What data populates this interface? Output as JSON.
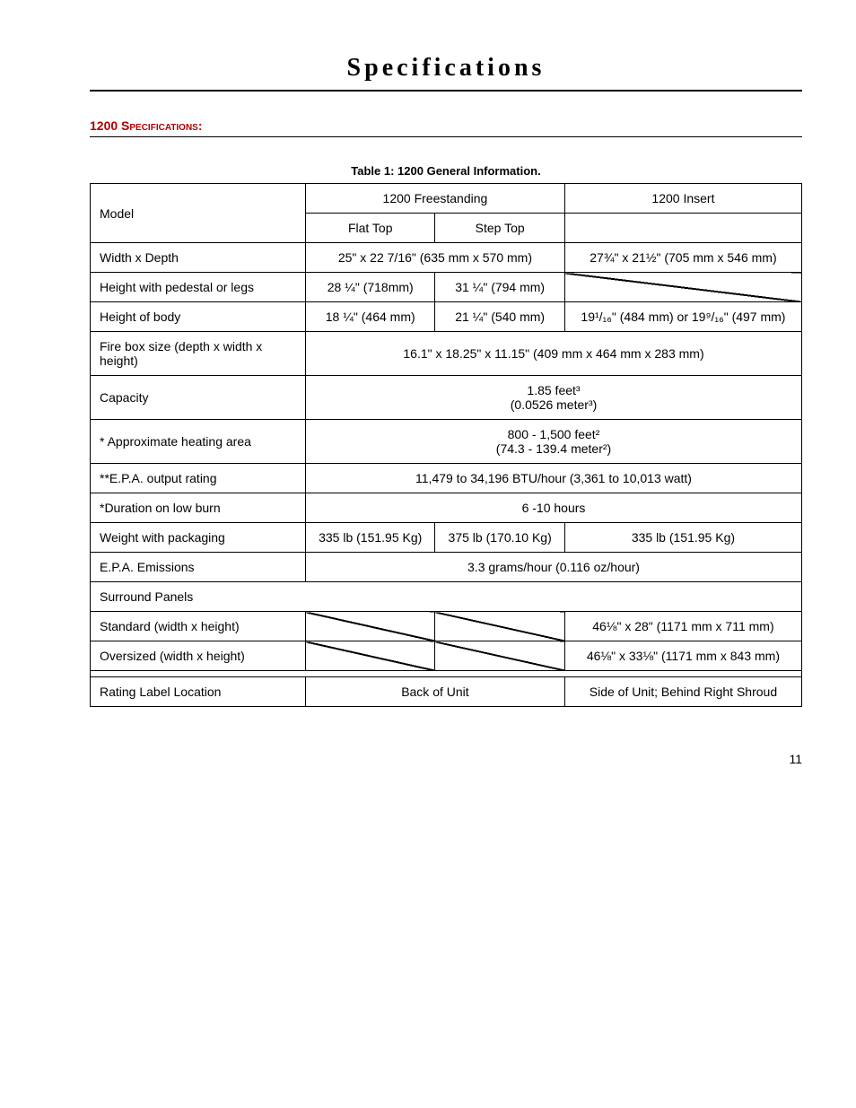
{
  "page_title": "Specifications",
  "section_title": "1200 Specifications:",
  "table_caption": "Table 1: 1200 General Information.",
  "headers": {
    "model": "Model",
    "freestanding": "1200 Freestanding",
    "insert": "1200 Insert",
    "flat_top": "Flat Top",
    "step_top": "Step Top"
  },
  "rows": {
    "width_depth": {
      "label": "Width x Depth",
      "freestanding": "25\" x 22 7/16\" (635 mm x 570 mm)",
      "insert": "27¾\"  x 21½\" (705 mm x 546 mm)"
    },
    "height_pedestal": {
      "label": "Height with pedestal or legs",
      "flat": "28 ¼\" (718mm)",
      "step": "31 ¼\" (794 mm)",
      "insert": ""
    },
    "height_body": {
      "label": "Height of body",
      "flat": "18 ¼\" (464 mm)",
      "step": "21 ¼\" (540 mm)",
      "insert": "19¹/₁₆\" (484 mm) or 19⁹/₁₆\" (497 mm)"
    },
    "firebox": {
      "label": "Fire box size (depth x width x height)",
      "value": "16.1\" x 18.25\" x 11.15\" (409 mm x 464 mm x 283 mm)"
    },
    "capacity": {
      "label": "Capacity",
      "line1": "1.85 feet³",
      "line2": "(0.0526 meter³)"
    },
    "heating_area": {
      "label": "* Approximate heating area",
      "line1": "800 - 1,500 feet²",
      "line2": "(74.3 - 139.4 meter²)"
    },
    "epa_output": {
      "label": "**E.P.A. output rating",
      "value": "11,479 to 34,196 BTU/hour (3,361 to 10,013 watt)"
    },
    "duration": {
      "label": "*Duration on low burn",
      "value": "6 -10 hours"
    },
    "weight": {
      "label": "Weight with packaging",
      "flat": "335 lb (151.95 Kg)",
      "step": "375 lb (170.10 Kg)",
      "insert": "335 lb (151.95 Kg)"
    },
    "emissions": {
      "label": "E.P.A. Emissions",
      "value": "3.3 grams/hour (0.116 oz/hour)"
    },
    "surround": {
      "label": "Surround Panels"
    },
    "standard": {
      "label": "Standard (width x height)",
      "insert": "46⅛\" x 28\" (1171 mm x 711 mm)"
    },
    "oversized": {
      "label": "Oversized (width x height)",
      "insert": "46⅛\" x 33⅛\" (1171 mm x 843 mm)"
    },
    "rating_label": {
      "label": "Rating Label Location",
      "freestanding": "Back of Unit",
      "insert": "Side of Unit; Behind Right Shroud"
    }
  },
  "page_number": "11",
  "colors": {
    "section_title": "#b00000",
    "border": "#000000",
    "text": "#000000",
    "background": "#ffffff"
  },
  "typography": {
    "title_fontsize": 28,
    "body_fontsize": 14,
    "caption_fontsize": 13
  }
}
